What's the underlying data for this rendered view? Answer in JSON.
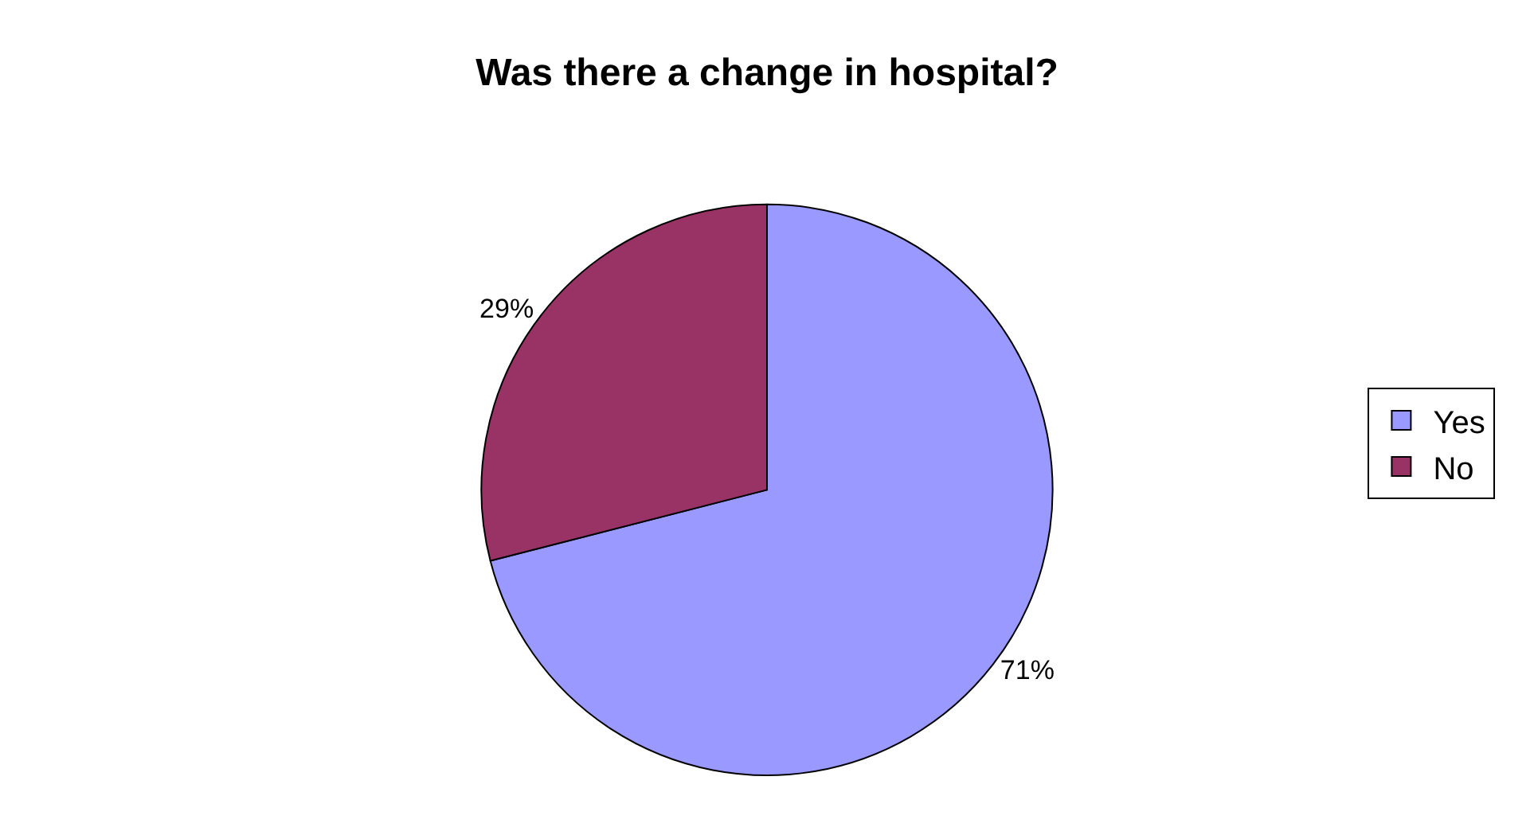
{
  "chart_data": {
    "type": "pie",
    "title": "Was there a change in hospital?",
    "categories": [
      "Yes",
      "No"
    ],
    "values": [
      71,
      29
    ],
    "colors": [
      "#9999ff",
      "#993366"
    ],
    "value_labels": [
      "71%",
      "29%"
    ],
    "legend": "right"
  }
}
